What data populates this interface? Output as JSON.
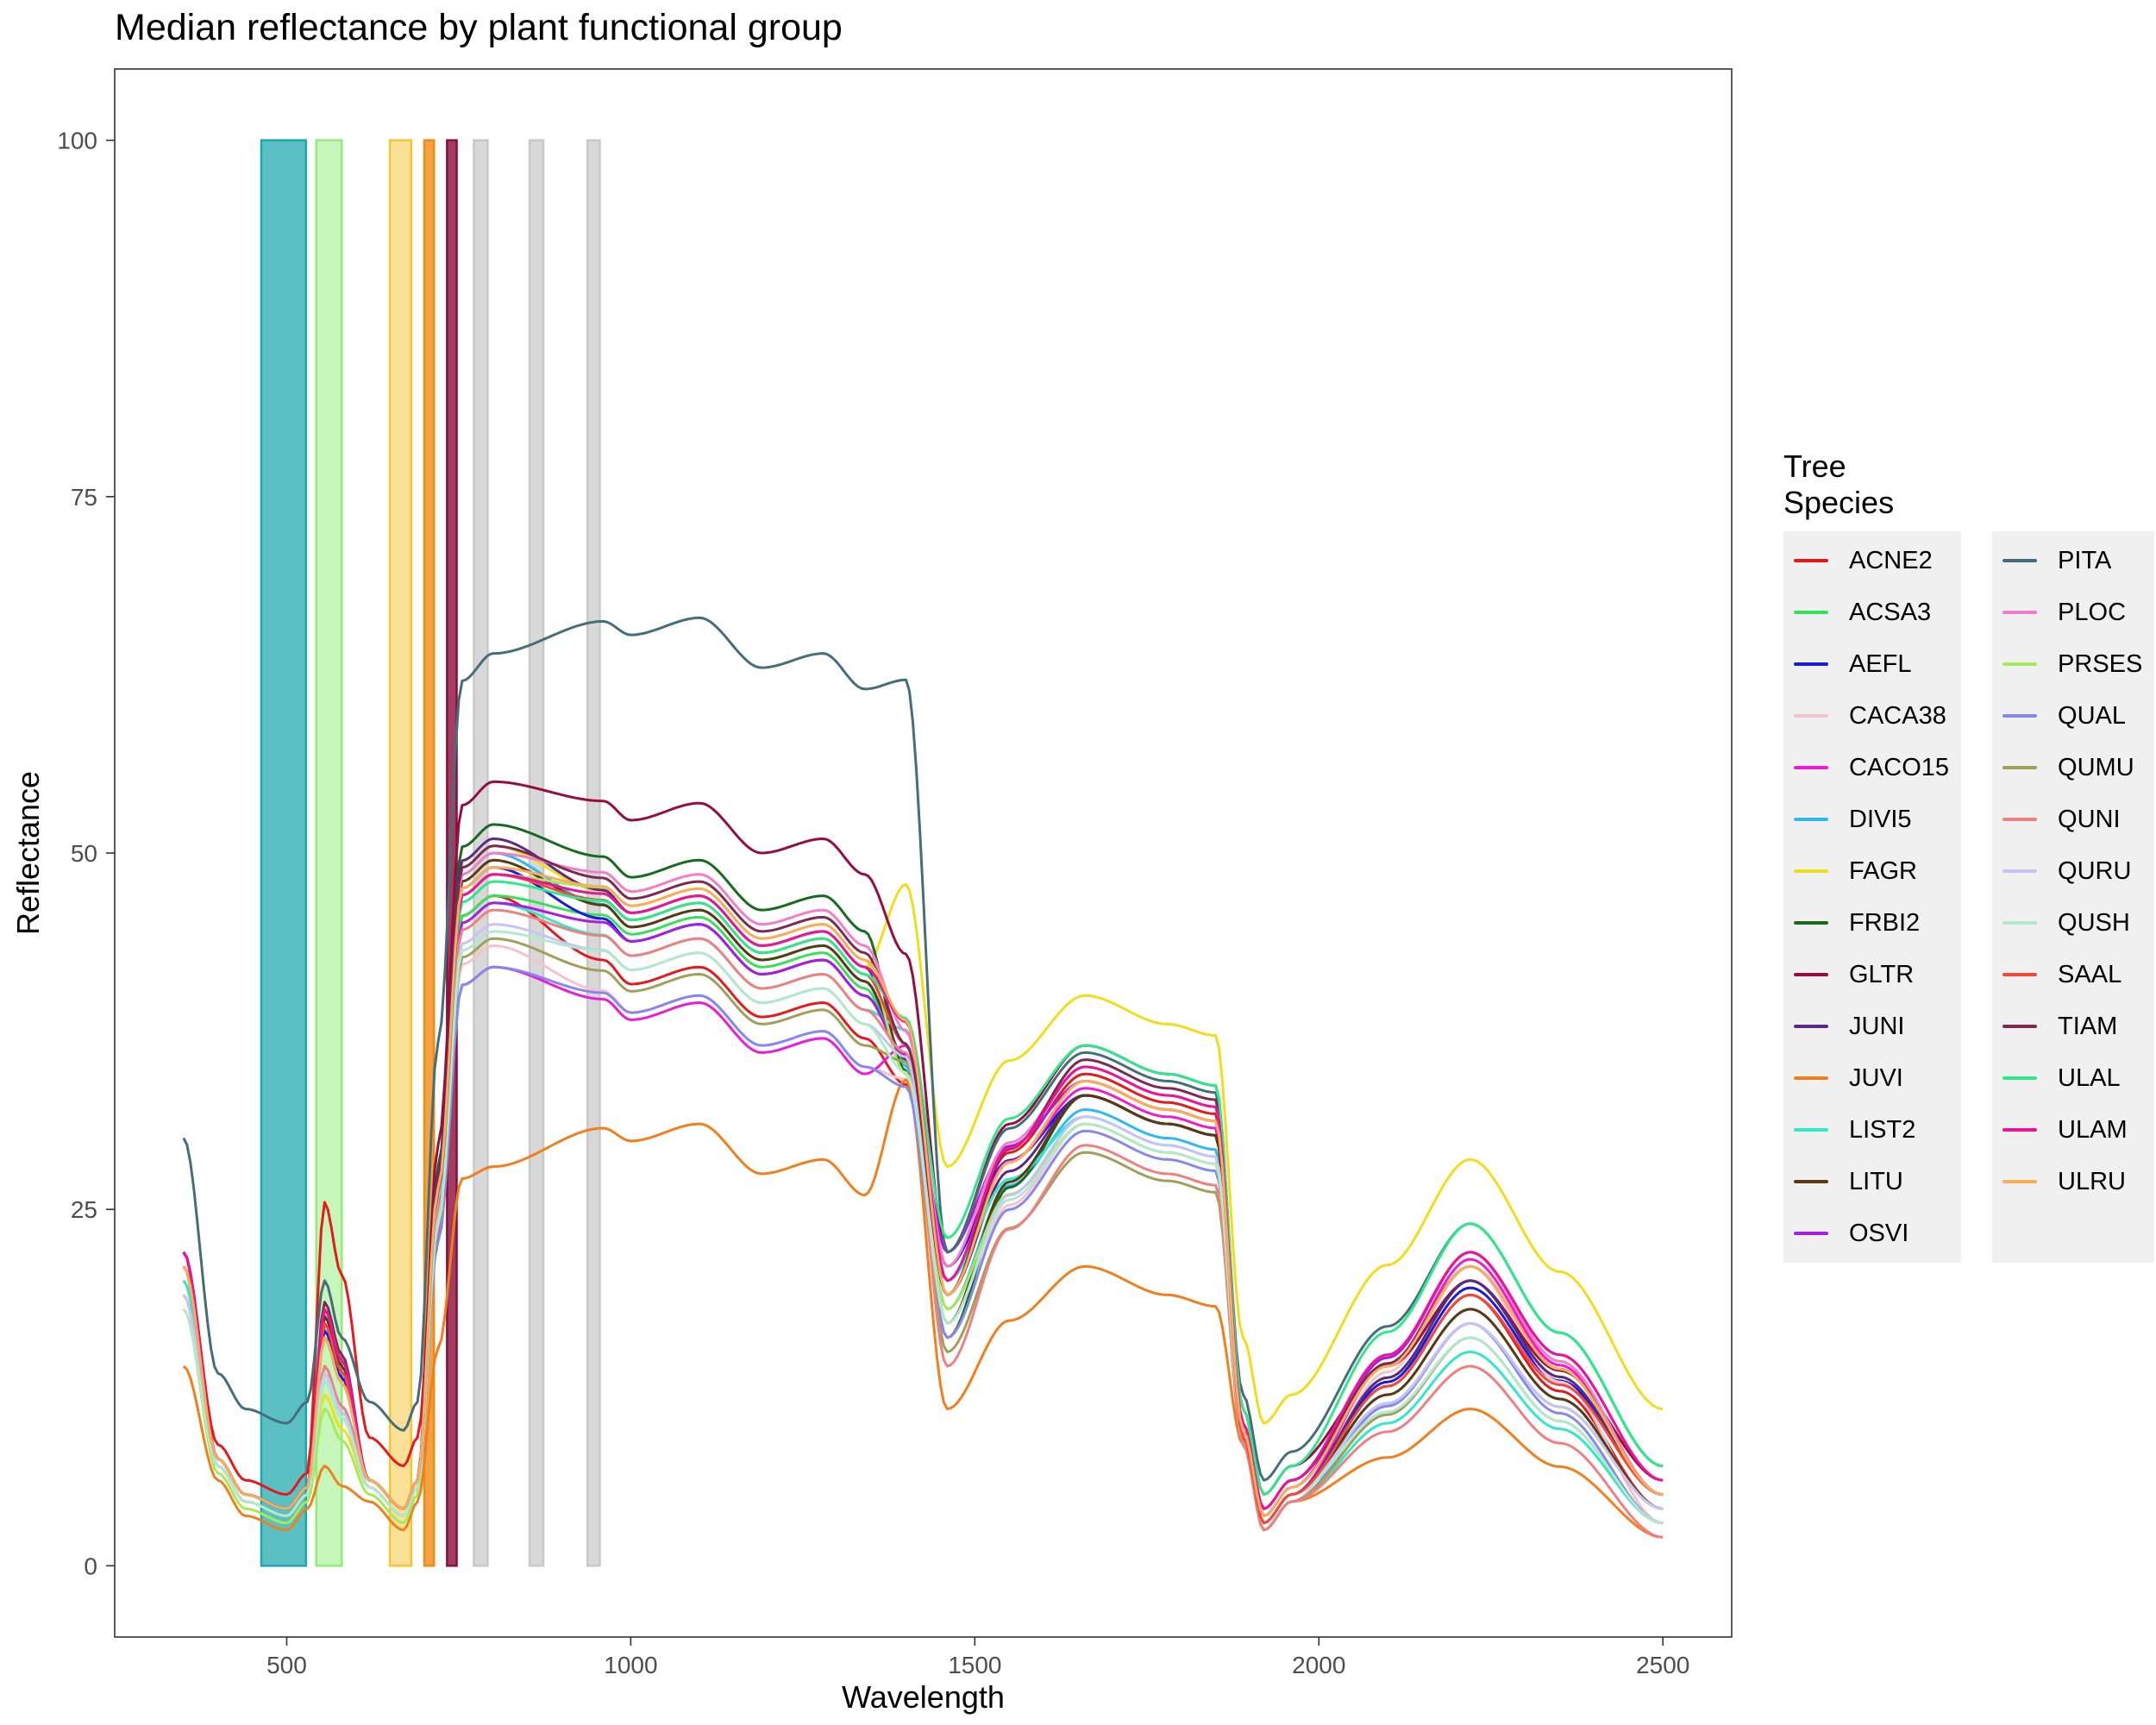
{
  "chart_data": {
    "type": "line",
    "title": "Median reflectance by plant functional group",
    "xlabel": "Wavelength",
    "ylabel": "Reflectance",
    "xlim": [
      250,
      2600
    ],
    "ylim": [
      -5,
      105
    ],
    "xticks": [
      500,
      1000,
      1500,
      2000,
      2500
    ],
    "yticks": [
      0,
      25,
      50,
      75,
      100
    ],
    "grid": false,
    "legend": {
      "title": "Tree\nSpecies",
      "position": "right",
      "columns": 2
    },
    "bands": [
      {
        "x0": 463,
        "x1": 528,
        "y1": 100,
        "color": "#1aa8ad",
        "opacity": 0.72
      },
      {
        "x0": 543,
        "x1": 580,
        "y1": 100,
        "color": "#90ee78",
        "opacity": 0.5
      },
      {
        "x0": 650,
        "x1": 681,
        "y1": 100,
        "color": "#f7c431",
        "opacity": 0.5
      },
      {
        "x0": 700,
        "x1": 714,
        "y1": 100,
        "color": "#f08a12",
        "opacity": 0.8
      },
      {
        "x0": 733,
        "x1": 747,
        "y1": 100,
        "color": "#8b0d3a",
        "opacity": 0.8
      },
      {
        "x0": 772,
        "x1": 792,
        "y1": 100,
        "color": "#c8c8c8",
        "opacity": 0.7
      },
      {
        "x0": 853,
        "x1": 873,
        "y1": 100,
        "color": "#c8c8c8",
        "opacity": 0.7
      },
      {
        "x0": 937,
        "x1": 955,
        "y1": 100,
        "color": "#c8c8c8",
        "opacity": 0.7
      }
    ],
    "series": [
      {
        "name": "ACNE2",
        "color": "#e41a1c",
        "values": {
          "start": 22,
          "trough": 5,
          "green": 25.5,
          "red": 7,
          "nir": 47,
          "nir2": 42,
          "p1": 32.5,
          "w1": 20,
          "p2": 34.5,
          "w2": 3,
          "p3": 19,
          "end": 4
        }
      },
      {
        "name": "ACSA3",
        "color": "#36e05a",
        "values": {
          "start": 21,
          "trough": 4,
          "green": 16,
          "red": 4,
          "nir": 47,
          "nir2": 45.5,
          "p1": 34,
          "w1": 21,
          "p2": 33,
          "w2": 3,
          "p3": 20,
          "end": 5
        }
      },
      {
        "name": "AEFL",
        "color": "#1a1ad9",
        "values": {
          "start": 21,
          "trough": 4,
          "green": 16.5,
          "red": 4,
          "nir": 49,
          "nir2": 45,
          "p1": 34.5,
          "w1": 21,
          "p2": 33,
          "w2": 3,
          "p3": 19.5,
          "end": 5
        }
      },
      {
        "name": "CACA38",
        "color": "#f7c2cc",
        "values": {
          "start": 19,
          "trough": 3.5,
          "green": 14,
          "red": 3.5,
          "nir": 43.5,
          "nir2": 40,
          "p1": 32.5,
          "w1": 16,
          "p2": 31,
          "w2": 2.5,
          "p3": 21,
          "end": 3
        }
      },
      {
        "name": "CACO15",
        "color": "#ee1bd4",
        "values": {
          "start": 22,
          "trough": 4,
          "green": 16,
          "red": 4,
          "nir": 42,
          "nir2": 39.5,
          "p1": 35,
          "w1": 20,
          "p2": 33.5,
          "w2": 3,
          "p3": 21.5,
          "end": 5
        }
      },
      {
        "name": "DIVI5",
        "color": "#30b9ee",
        "values": {
          "start": 20,
          "trough": 4,
          "green": 14,
          "red": 4,
          "nir": 50,
          "nir2": 46,
          "p1": 33.5,
          "w1": 18,
          "p2": 32,
          "w2": 3,
          "p3": 18,
          "end": 4
        }
      },
      {
        "name": "FAGR",
        "color": "#f0de1a",
        "values": {
          "start": 20,
          "trough": 3.5,
          "green": 12,
          "red": 3.5,
          "nir": 50.5,
          "nir2": 47,
          "p1": 46,
          "w1": 28,
          "p2": 40,
          "w2": 10,
          "p3": 28.5,
          "end": 11
        }
      },
      {
        "name": "FRBI2",
        "color": "#176b1f",
        "values": {
          "start": 21,
          "trough": 4,
          "green": 17,
          "red": 4,
          "nir": 52,
          "nir2": 49.5,
          "p1": 33,
          "w1": 16,
          "p2": 33,
          "w2": 3,
          "p3": 17,
          "end": 4
        }
      },
      {
        "name": "GLTR",
        "color": "#940e3f",
        "values": {
          "start": 22,
          "trough": 4,
          "green": 17,
          "red": 4,
          "nir": 55,
          "nir2": 53.5,
          "p1": 41,
          "w1": 22,
          "p2": 36.5,
          "w2": 5,
          "p3": 20,
          "end": 6
        }
      },
      {
        "name": "JUNI",
        "color": "#5b2a86",
        "values": {
          "start": 21,
          "trough": 4,
          "green": 18,
          "red": 4,
          "nir": 51,
          "nir2": 47,
          "p1": 34,
          "w1": 19,
          "p2": 33,
          "w2": 3,
          "p3": 20,
          "end": 5
        }
      },
      {
        "name": "JUVI",
        "color": "#f07f1e",
        "values": {
          "start": 14,
          "trough": 2.5,
          "green": 7,
          "red": 2.5,
          "nir": 28,
          "nir2": 31,
          "p1": 32,
          "w1": 11,
          "p2": 21,
          "w2": 2.5,
          "p3": 11,
          "end": 2
        }
      },
      {
        "name": "LIST2",
        "color": "#32e8c8",
        "values": {
          "start": 20,
          "trough": 3.5,
          "green": 13,
          "red": 3.5,
          "nir": 46.5,
          "nir2": 44,
          "p1": 36,
          "w1": 20,
          "p2": 31.5,
          "w2": 2.5,
          "p3": 15,
          "end": 3
        }
      },
      {
        "name": "LITU",
        "color": "#5b3a12",
        "values": {
          "start": 21,
          "trough": 4,
          "green": 17.5,
          "red": 4,
          "nir": 49.5,
          "nir2": 46,
          "p1": 34,
          "w1": 17,
          "p2": 33,
          "w2": 3,
          "p3": 18,
          "end": 4
        }
      },
      {
        "name": "OSVI",
        "color": "#a71ee0",
        "values": {
          "start": 22,
          "trough": 4,
          "green": 17,
          "red": 4,
          "nir": 46.5,
          "nir2": 45,
          "p1": 34.5,
          "w1": 22,
          "p2": 34,
          "w2": 3.5,
          "p3": 22,
          "end": 6
        }
      },
      {
        "name": "PITA",
        "color": "#456e7a",
        "values": {
          "start": 30,
          "trough": 10,
          "green": 20,
          "red": 9.5,
          "nir": 64,
          "nir2": 66.5,
          "p1": 58.5,
          "w1": 22,
          "p2": 36,
          "w2": 6,
          "p3": 24,
          "end": 7
        }
      },
      {
        "name": "PLOC",
        "color": "#f27ecb",
        "values": {
          "start": 21,
          "trough": 4,
          "green": 16,
          "red": 4,
          "nir": 50,
          "nir2": 48.5,
          "p1": 36,
          "w1": 21,
          "p2": 35,
          "w2": 4,
          "p3": 22,
          "end": 5
        }
      },
      {
        "name": "PRSES",
        "color": "#a6ea5a",
        "values": {
          "start": 18,
          "trough": 3,
          "green": 11,
          "red": 3,
          "nir": 48.5,
          "nir2": 47.5,
          "p1": 33,
          "w1": 18,
          "p2": 31,
          "w2": 3,
          "p3": 17,
          "end": 4
        }
      },
      {
        "name": "QUAL",
        "color": "#8787f0",
        "values": {
          "start": 19,
          "trough": 3.5,
          "green": 13,
          "red": 3.5,
          "nir": 42,
          "nir2": 40,
          "p1": 32,
          "w1": 16,
          "p2": 30.5,
          "w2": 2.5,
          "p3": 17,
          "end": 3
        }
      },
      {
        "name": "QUMU",
        "color": "#a0a05a",
        "values": {
          "start": 19,
          "trough": 3.5,
          "green": 13.5,
          "red": 3.5,
          "nir": 44,
          "nir2": 41.5,
          "p1": 33.5,
          "w1": 15,
          "p2": 29,
          "w2": 2.5,
          "p3": 16,
          "end": 3
        }
      },
      {
        "name": "QUNI",
        "color": "#f08080",
        "values": {
          "start": 19,
          "trough": 3.5,
          "green": 14,
          "red": 3.5,
          "nir": 46,
          "nir2": 44,
          "p1": 34,
          "w1": 14,
          "p2": 29.5,
          "w2": 2.5,
          "p3": 14,
          "end": 2
        }
      },
      {
        "name": "QURU",
        "color": "#c8c3f5",
        "values": {
          "start": 19,
          "trough": 3.5,
          "green": 13.5,
          "red": 3.5,
          "nir": 45,
          "nir2": 43,
          "p1": 34,
          "w1": 17,
          "p2": 31.5,
          "w2": 3,
          "p3": 17,
          "end": 4
        }
      },
      {
        "name": "QUSH",
        "color": "#b2e8cc",
        "values": {
          "start": 18,
          "trough": 3.5,
          "green": 13,
          "red": 3.5,
          "nir": 44.5,
          "nir2": 43,
          "p1": 33,
          "w1": 17,
          "p2": 31,
          "w2": 3,
          "p3": 16,
          "end": 3
        }
      },
      {
        "name": "SAAL",
        "color": "#ef4a3c",
        "values": {
          "start": 21,
          "trough": 4,
          "green": 17,
          "red": 4,
          "nir": 48.5,
          "nir2": 46.5,
          "p1": 35,
          "w1": 19,
          "p2": 34,
          "w2": 3,
          "p3": 19,
          "end": 5
        }
      },
      {
        "name": "TIAM",
        "color": "#7b2a52",
        "values": {
          "start": 22,
          "trough": 4,
          "green": 18.5,
          "red": 4,
          "nir": 50.5,
          "nir2": 48,
          "p1": 35,
          "w1": 19,
          "p2": 35.5,
          "w2": 4,
          "p3": 21,
          "end": 5
        }
      },
      {
        "name": "ULAL",
        "color": "#2ee88a",
        "values": {
          "start": 21,
          "trough": 4,
          "green": 16,
          "red": 4,
          "nir": 48,
          "nir2": 46.5,
          "p1": 37,
          "w1": 23,
          "p2": 36.5,
          "w2": 5,
          "p3": 24,
          "end": 7
        }
      },
      {
        "name": "ULAM",
        "color": "#e8159a",
        "values": {
          "start": 22,
          "trough": 4,
          "green": 18,
          "red": 4,
          "nir": 48.5,
          "nir2": 47,
          "p1": 36.5,
          "w1": 20,
          "p2": 35,
          "w2": 4,
          "p3": 22,
          "end": 6
        }
      },
      {
        "name": "ULRU",
        "color": "#f8ad5a",
        "values": {
          "start": 21,
          "trough": 4,
          "green": 16,
          "red": 4,
          "nir": 49,
          "nir2": 47.5,
          "p1": 36.5,
          "w1": 19,
          "p2": 34,
          "w2": 3.5,
          "p3": 21,
          "end": 5
        }
      }
    ]
  }
}
